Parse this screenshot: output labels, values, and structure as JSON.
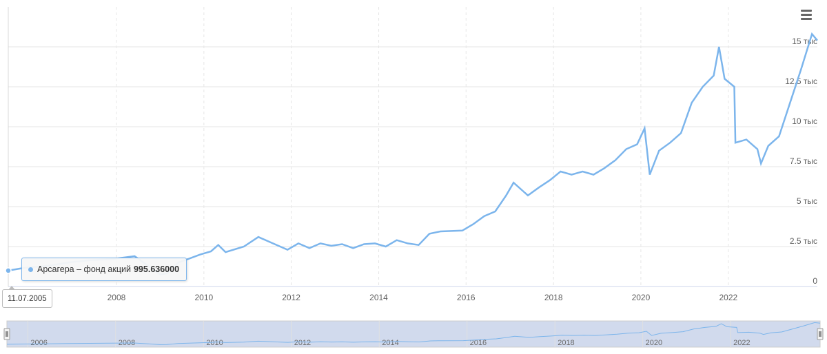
{
  "colors": {
    "series": "#7cb5ec",
    "grid": "#e6e6e6",
    "navigator_mask": "rgba(102,133,194,0.3)"
  },
  "menu_icon": "hamburger-menu-icon",
  "tooltip": {
    "series_name": "Арсагера – фонд акций",
    "value": "995.636000",
    "date": "11.07.2005"
  },
  "chart_data": {
    "type": "line",
    "series": [
      {
        "values": [
          [
            "2005-07-11",
            996
          ],
          [
            "2005-12-01",
            1180
          ],
          [
            "2006-06-01",
            1290
          ],
          [
            "2006-12-01",
            1510
          ],
          [
            "2007-06-01",
            1650
          ],
          [
            "2007-12-01",
            1720
          ],
          [
            "2008-06-01",
            1900
          ],
          [
            "2008-10-01",
            1250
          ],
          [
            "2009-01-01",
            750
          ],
          [
            "2009-03-01",
            820
          ],
          [
            "2009-06-01",
            1500
          ],
          [
            "2009-09-01",
            1750
          ],
          [
            "2009-12-01",
            2000
          ],
          [
            "2010-03-01",
            2200
          ],
          [
            "2010-05-01",
            2600
          ],
          [
            "2010-07-01",
            2150
          ],
          [
            "2010-12-01",
            2500
          ],
          [
            "2011-04-01",
            3100
          ],
          [
            "2011-08-01",
            2700
          ],
          [
            "2011-12-01",
            2300
          ],
          [
            "2012-03-01",
            2700
          ],
          [
            "2012-06-01",
            2400
          ],
          [
            "2012-09-01",
            2700
          ],
          [
            "2012-12-01",
            2550
          ],
          [
            "2013-03-01",
            2650
          ],
          [
            "2013-06-01",
            2400
          ],
          [
            "2013-09-01",
            2650
          ],
          [
            "2013-12-01",
            2700
          ],
          [
            "2014-03-01",
            2500
          ],
          [
            "2014-06-01",
            2900
          ],
          [
            "2014-09-01",
            2700
          ],
          [
            "2014-12-01",
            2600
          ],
          [
            "2015-03-01",
            3300
          ],
          [
            "2015-06-01",
            3450
          ],
          [
            "2015-12-01",
            3500
          ],
          [
            "2016-03-01",
            3900
          ],
          [
            "2016-06-01",
            4400
          ],
          [
            "2016-09-01",
            4700
          ],
          [
            "2016-12-01",
            5700
          ],
          [
            "2017-02-01",
            6500
          ],
          [
            "2017-06-01",
            5700
          ],
          [
            "2017-09-01",
            6200
          ],
          [
            "2017-12-01",
            6650
          ],
          [
            "2018-03-01",
            7200
          ],
          [
            "2018-06-01",
            7000
          ],
          [
            "2018-09-01",
            7200
          ],
          [
            "2018-12-01",
            7000
          ],
          [
            "2019-03-01",
            7400
          ],
          [
            "2019-06-01",
            7900
          ],
          [
            "2019-09-01",
            8600
          ],
          [
            "2019-12-01",
            8900
          ],
          [
            "2020-02-01",
            9900
          ],
          [
            "2020-03-15",
            7000
          ],
          [
            "2020-06-01",
            8500
          ],
          [
            "2020-09-01",
            9000
          ],
          [
            "2020-12-01",
            9600
          ],
          [
            "2021-03-01",
            11500
          ],
          [
            "2021-06-01",
            12500
          ],
          [
            "2021-09-01",
            13200
          ],
          [
            "2021-10-15",
            15000
          ],
          [
            "2021-12-01",
            13000
          ],
          [
            "2022-02-20",
            12500
          ],
          [
            "2022-03-01",
            9000
          ],
          [
            "2022-06-01",
            9200
          ],
          [
            "2022-09-01",
            8600
          ],
          [
            "2022-10-01",
            7700
          ],
          [
            "2022-12-01",
            8800
          ],
          [
            "2023-03-01",
            9400
          ],
          [
            "2023-06-01",
            11500
          ],
          [
            "2023-09-01",
            13600
          ],
          [
            "2023-12-01",
            15800
          ],
          [
            "2024-01-15",
            15400
          ]
        ]
      }
    ],
    "yaxis": {
      "ticks": [
        "0",
        "2.5 тыс",
        "5 тыс",
        "7.5 тыс",
        "10 тыс",
        "12.5 тыс",
        "15 тыс"
      ],
      "tick_values": [
        0,
        2500,
        5000,
        7500,
        10000,
        12500,
        15000
      ],
      "ylim": [
        0,
        17500
      ]
    },
    "xaxis": {
      "ticks": [
        "2008",
        "2010",
        "2012",
        "2014",
        "2016",
        "2018",
        "2020",
        "2022"
      ]
    },
    "navigator": {
      "ticks": [
        "2006",
        "2008",
        "2010",
        "2012",
        "2014",
        "2016",
        "2018",
        "2020",
        "2022"
      ]
    },
    "grid": true
  }
}
